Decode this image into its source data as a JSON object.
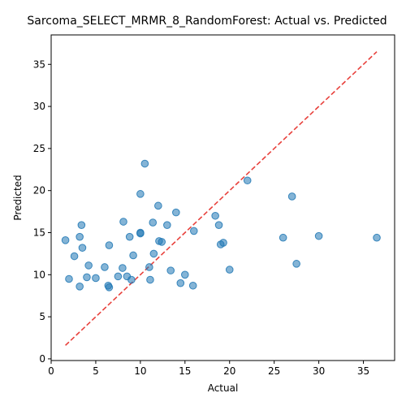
{
  "chart_data": {
    "type": "scatter",
    "title": "Sarcoma_SELECT_MRMR_8_RandomForest: Actual vs. Predicted",
    "xlabel": "Actual",
    "ylabel": "Predicted",
    "xlim": [
      0,
      38.5
    ],
    "ylim": [
      -0.2,
      38.5
    ],
    "xticks": [
      0,
      5,
      10,
      15,
      20,
      25,
      30,
      35
    ],
    "yticks": [
      0,
      5,
      10,
      15,
      20,
      25,
      30,
      35
    ],
    "grid": false,
    "colors": {
      "points": "#1f77b4",
      "reference": "#e8413c"
    },
    "reference_line": {
      "style": "dashed",
      "x": [
        1.6,
        36.5
      ],
      "y": [
        1.6,
        36.5
      ]
    },
    "points": [
      {
        "x": 1.6,
        "y": 14.1
      },
      {
        "x": 2.0,
        "y": 9.5
      },
      {
        "x": 2.6,
        "y": 12.2
      },
      {
        "x": 3.2,
        "y": 14.5
      },
      {
        "x": 3.2,
        "y": 8.6
      },
      {
        "x": 3.4,
        "y": 15.9
      },
      {
        "x": 3.5,
        "y": 13.2
      },
      {
        "x": 4.0,
        "y": 9.7
      },
      {
        "x": 4.2,
        "y": 11.1
      },
      {
        "x": 5.0,
        "y": 9.6
      },
      {
        "x": 6.0,
        "y": 10.9
      },
      {
        "x": 6.4,
        "y": 8.7
      },
      {
        "x": 6.5,
        "y": 8.5
      },
      {
        "x": 6.5,
        "y": 13.5
      },
      {
        "x": 7.5,
        "y": 9.8
      },
      {
        "x": 8.0,
        "y": 10.8
      },
      {
        "x": 8.1,
        "y": 16.3
      },
      {
        "x": 8.5,
        "y": 9.8
      },
      {
        "x": 8.8,
        "y": 14.5
      },
      {
        "x": 9.0,
        "y": 9.4
      },
      {
        "x": 9.2,
        "y": 12.3
      },
      {
        "x": 10.0,
        "y": 15.0
      },
      {
        "x": 10.0,
        "y": 14.9
      },
      {
        "x": 10.0,
        "y": 19.6
      },
      {
        "x": 10.5,
        "y": 23.2
      },
      {
        "x": 11.0,
        "y": 10.9
      },
      {
        "x": 11.1,
        "y": 9.4
      },
      {
        "x": 11.4,
        "y": 16.2
      },
      {
        "x": 11.5,
        "y": 12.5
      },
      {
        "x": 12.0,
        "y": 18.2
      },
      {
        "x": 12.1,
        "y": 14.0
      },
      {
        "x": 12.4,
        "y": 13.9
      },
      {
        "x": 13.0,
        "y": 15.9
      },
      {
        "x": 13.4,
        "y": 10.5
      },
      {
        "x": 14.0,
        "y": 17.4
      },
      {
        "x": 14.5,
        "y": 9.0
      },
      {
        "x": 15.0,
        "y": 10.0
      },
      {
        "x": 15.9,
        "y": 8.7
      },
      {
        "x": 16.0,
        "y": 15.2
      },
      {
        "x": 18.4,
        "y": 17.0
      },
      {
        "x": 18.8,
        "y": 15.9
      },
      {
        "x": 19.0,
        "y": 13.6
      },
      {
        "x": 19.3,
        "y": 13.8
      },
      {
        "x": 20.0,
        "y": 10.6
      },
      {
        "x": 22.0,
        "y": 21.2
      },
      {
        "x": 26.0,
        "y": 14.4
      },
      {
        "x": 27.0,
        "y": 19.3
      },
      {
        "x": 27.5,
        "y": 11.3
      },
      {
        "x": 30.0,
        "y": 14.6
      },
      {
        "x": 36.5,
        "y": 14.4
      }
    ]
  }
}
